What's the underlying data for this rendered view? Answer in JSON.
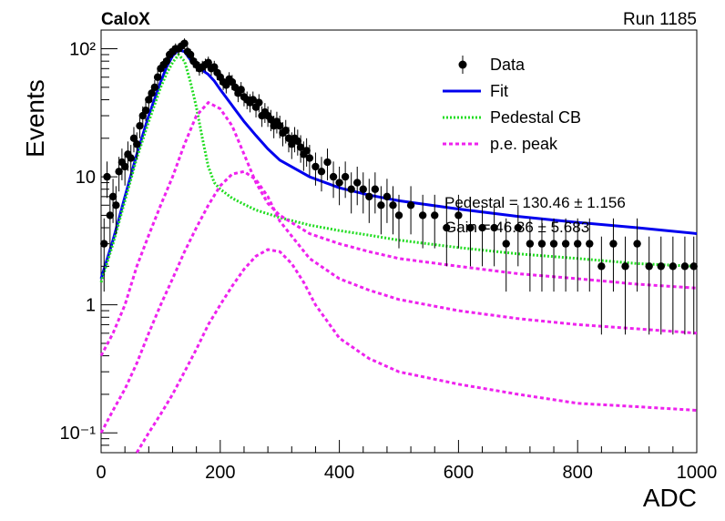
{
  "header": {
    "experiment": "CaloX",
    "run": "Run 1185"
  },
  "chart_data": {
    "type": "scatter",
    "xlabel": "ADC",
    "ylabel": "Events",
    "xlim": [
      0,
      1000
    ],
    "ylim": [
      0.07,
      140
    ],
    "yscale": "log",
    "x_ticks": [
      0,
      200,
      400,
      600,
      800,
      1000
    ],
    "y_ticks": [
      {
        "value": 100,
        "label": "10²"
      },
      {
        "value": 10,
        "label": "10"
      },
      {
        "value": 1,
        "label": "1"
      },
      {
        "value": 0.1,
        "label": "10⁻¹"
      }
    ],
    "legend": {
      "placement": "top-right",
      "entries": [
        {
          "label": "Data",
          "style": "marker",
          "color": "#000000"
        },
        {
          "label": "Fit",
          "style": "solid",
          "color": "#0000ee"
        },
        {
          "label": "Pedestal CB",
          "style": "dotted",
          "color": "#22dd22"
        },
        {
          "label": "p.e. peak",
          "style": "dashed",
          "color": "#ee22ee"
        }
      ]
    },
    "stat_annotations": [
      "Pedestal = 130.46 ± 1.156",
      "Gain = 46.36 ± 5.683"
    ],
    "series": [
      {
        "name": "Data",
        "x": [
          5,
          10,
          15,
          20,
          25,
          30,
          35,
          40,
          45,
          50,
          55,
          60,
          65,
          70,
          75,
          80,
          85,
          90,
          95,
          100,
          105,
          110,
          115,
          120,
          125,
          130,
          135,
          140,
          145,
          150,
          155,
          160,
          165,
          170,
          175,
          180,
          185,
          190,
          195,
          200,
          205,
          210,
          215,
          220,
          225,
          230,
          235,
          240,
          245,
          250,
          255,
          260,
          265,
          270,
          275,
          280,
          285,
          290,
          295,
          300,
          305,
          310,
          315,
          320,
          325,
          330,
          335,
          340,
          345,
          350,
          360,
          370,
          380,
          390,
          400,
          410,
          420,
          430,
          440,
          450,
          460,
          470,
          480,
          490,
          500,
          520,
          540,
          560,
          580,
          600,
          620,
          640,
          660,
          680,
          700,
          720,
          740,
          760,
          780,
          800,
          820,
          840,
          860,
          880,
          900,
          920,
          940,
          960,
          980,
          995
        ],
        "y": [
          3,
          10,
          5,
          7,
          6,
          11,
          13,
          12,
          15,
          14,
          20,
          18,
          25,
          30,
          33,
          40,
          45,
          50,
          60,
          70,
          75,
          80,
          90,
          95,
          100,
          100,
          105,
          110,
          95,
          90,
          80,
          75,
          70,
          72,
          75,
          78,
          70,
          72,
          65,
          60,
          55,
          52,
          58,
          55,
          50,
          45,
          48,
          42,
          40,
          38,
          40,
          35,
          38,
          30,
          32,
          30,
          28,
          25,
          27,
          25,
          22,
          23,
          20,
          18,
          20,
          19,
          17,
          15,
          16,
          14,
          12,
          11,
          13,
          10,
          9,
          10,
          8,
          9,
          8,
          7,
          8,
          6,
          7,
          6,
          5,
          6,
          5,
          5,
          4,
          5,
          4,
          4,
          4,
          3,
          4,
          3,
          3,
          3,
          3,
          3,
          3,
          2,
          3,
          2,
          3,
          2,
          2,
          2,
          2,
          2
        ]
      },
      {
        "name": "Fit",
        "x": [
          0,
          20,
          40,
          60,
          80,
          100,
          110,
          120,
          130,
          140,
          150,
          160,
          170,
          180,
          190,
          200,
          220,
          240,
          260,
          280,
          300,
          350,
          400,
          450,
          500,
          600,
          700,
          800,
          900,
          1000
        ],
        "y": [
          1.6,
          3.2,
          7,
          15,
          30,
          55,
          72,
          88,
          98,
          95,
          82,
          72,
          68,
          63,
          56,
          48,
          36,
          27,
          21,
          16.5,
          13.5,
          10,
          8.2,
          7.2,
          6.5,
          5.6,
          4.9,
          4.4,
          4.0,
          3.6
        ]
      },
      {
        "name": "Pedestal CB",
        "x": [
          0,
          20,
          40,
          60,
          80,
          100,
          110,
          120,
          130,
          140,
          150,
          160,
          170,
          180,
          190,
          200,
          220,
          240,
          260,
          300,
          350,
          400,
          450,
          500,
          600,
          700,
          800,
          900,
          1000
        ],
        "y": [
          1.5,
          3,
          6.5,
          14,
          27,
          50,
          64,
          78,
          90,
          80,
          55,
          35,
          20,
          12,
          9,
          8,
          6.8,
          6.1,
          5.5,
          4.8,
          4.2,
          3.8,
          3.5,
          3.2,
          2.8,
          2.5,
          2.3,
          2.1,
          2.0
        ]
      },
      {
        "name": "p.e. peak 1",
        "x": [
          0,
          20,
          40,
          60,
          80,
          100,
          120,
          140,
          160,
          180,
          200,
          220,
          240,
          260,
          280,
          300,
          350,
          400,
          450,
          500,
          600,
          700,
          800,
          900,
          1000
        ],
        "y": [
          0.4,
          0.6,
          1,
          2,
          3.5,
          6,
          10,
          18,
          30,
          38,
          34,
          25,
          15,
          9,
          6.2,
          5,
          3.6,
          3,
          2.6,
          2.3,
          2,
          1.75,
          1.6,
          1.45,
          1.35
        ]
      },
      {
        "name": "p.e. peak 2",
        "x": [
          0,
          20,
          40,
          60,
          80,
          100,
          120,
          140,
          160,
          180,
          200,
          220,
          240,
          260,
          280,
          300,
          350,
          400,
          450,
          500,
          600,
          700,
          800,
          900,
          1000
        ],
        "y": [
          0.1,
          0.15,
          0.22,
          0.35,
          0.6,
          1,
          1.6,
          2.6,
          4,
          6,
          8.5,
          10.5,
          11,
          9.5,
          7,
          4.5,
          2.3,
          1.6,
          1.3,
          1.1,
          0.9,
          0.78,
          0.7,
          0.65,
          0.6
        ]
      },
      {
        "name": "p.e. peak 3",
        "x": [
          60,
          80,
          100,
          120,
          140,
          160,
          180,
          200,
          220,
          240,
          260,
          280,
          300,
          320,
          340,
          360,
          400,
          450,
          500,
          600,
          700,
          800,
          900,
          1000
        ],
        "y": [
          0.07,
          0.1,
          0.14,
          0.2,
          0.3,
          0.45,
          0.7,
          1.0,
          1.4,
          1.9,
          2.4,
          2.7,
          2.6,
          2.1,
          1.5,
          1.0,
          0.55,
          0.38,
          0.3,
          0.24,
          0.2,
          0.17,
          0.16,
          0.15
        ]
      }
    ]
  }
}
